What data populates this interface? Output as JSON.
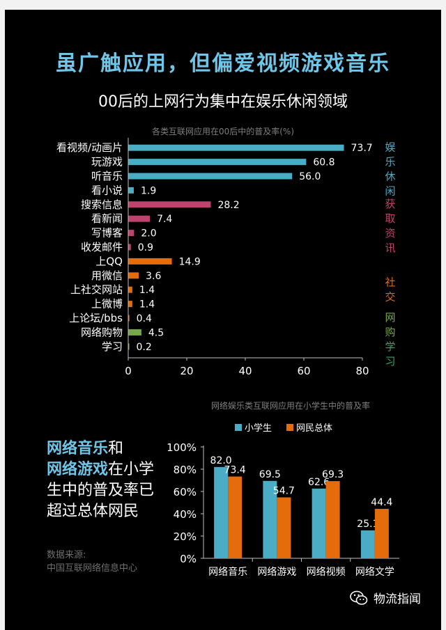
{
  "page": {
    "title": "虽广触应用，但偏爱视频游戏音乐",
    "subtitle": "00后的上网行为集中在娱乐休闲领域"
  },
  "chart_data": [
    {
      "type": "bar",
      "orientation": "horizontal",
      "title": "各类互联网应用在00后中的普及率(%)",
      "categories": [
        "看视频/动画片",
        "玩游戏",
        "听音乐",
        "看小说",
        "搜索信息",
        "看新闻",
        "写博客",
        "收发邮件",
        "上QQ",
        "用微信",
        "上社交网站",
        "上微博",
        "上论坛/bbs",
        "网络购物",
        "学习"
      ],
      "values": [
        73.7,
        60.8,
        56.0,
        1.9,
        28.2,
        7.4,
        2.0,
        0.9,
        14.9,
        3.6,
        1.4,
        1.4,
        0.4,
        4.5,
        0.2
      ],
      "value_labels": [
        "73.7",
        "60.8",
        "56.0",
        "1.9",
        "28.2",
        "7.4",
        "2.0",
        "0.9",
        "14.9",
        "3.6",
        "1.4",
        "1.4",
        "0.4",
        "4.5",
        "0.2"
      ],
      "groups": [
        {
          "label": "娱乐休闲",
          "start": 0,
          "end": 3,
          "color": "#4bacc6"
        },
        {
          "label": "获取资讯",
          "start": 4,
          "end": 7,
          "color": "#c0426e"
        },
        {
          "label": "社交",
          "start": 8,
          "end": 12,
          "color": "#e46c0a"
        },
        {
          "label": "网购学习",
          "start": 13,
          "end": 14,
          "color": "#77a74b"
        }
      ],
      "group_label_colors": [
        "#4bacc6",
        "#c0426e",
        "#e46c0a",
        "#77a74b",
        "#3aa06a"
      ],
      "xlim": [
        0,
        80
      ],
      "xticks": [
        "0",
        "20",
        "40",
        "60",
        "80"
      ],
      "grid": false
    },
    {
      "type": "bar",
      "title": "网络娱乐类互联网应用在小学生中的普及率",
      "categories": [
        "网络音乐",
        "网络游戏",
        "网络视频",
        "网络文学"
      ],
      "series": [
        {
          "name": "小学生",
          "values": [
            82.0,
            69.5,
            62.6,
            25.1
          ],
          "labels": [
            "82.0",
            "69.5",
            "62.6",
            "25.1"
          ],
          "color": "#4bacc6"
        },
        {
          "name": "网民总体",
          "values": [
            73.4,
            54.7,
            69.3,
            44.4
          ],
          "labels": [
            "73.4",
            "54.7",
            "69.3",
            "44.4"
          ],
          "color": "#e46c0a"
        }
      ],
      "ylim": [
        0,
        100
      ],
      "yticks": [
        "0%",
        "20%",
        "40%",
        "60%",
        "80%",
        "100%"
      ],
      "legend": "top",
      "grid": false
    }
  ],
  "note": {
    "hl1": "网络音乐",
    "t1": "和",
    "hl2": "网络游戏",
    "t2": "在小学生中的普及率已超过总体网民"
  },
  "source": {
    "line1": "数据来源:",
    "line2": "中国互联网络信息中心"
  },
  "brand": {
    "name": "物流指闻",
    "icon": "wechat-icon"
  }
}
